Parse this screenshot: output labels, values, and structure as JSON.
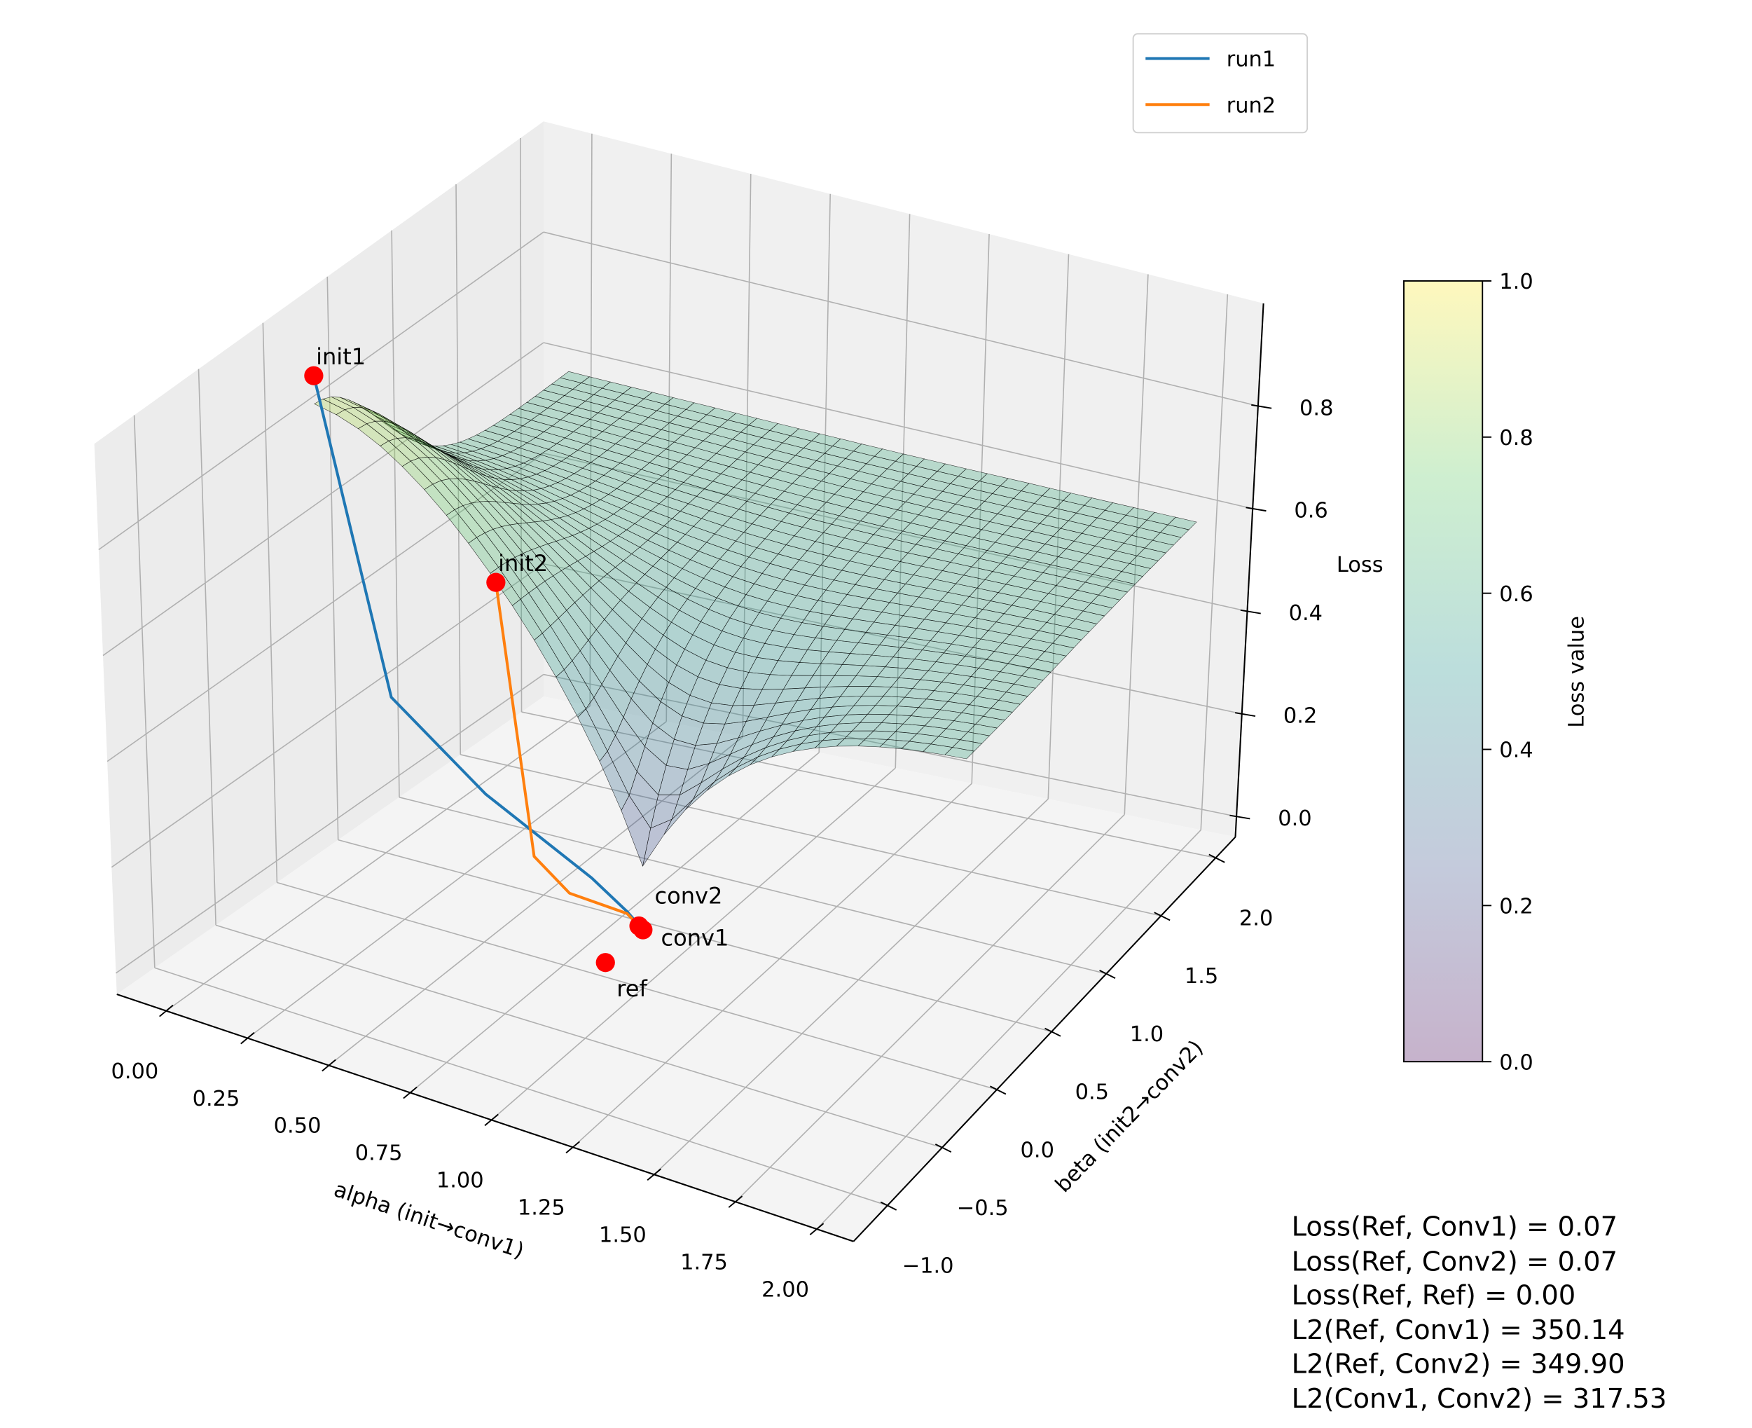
{
  "chart_data": {
    "type": "surface3d",
    "title": "",
    "xlabel": "alpha (init→conv1)",
    "ylabel": "beta (init2→conv2)",
    "zlabel": "Loss",
    "xlim": [
      -0.152,
      2.113
    ],
    "ylim": [
      -1.31,
      2.18
    ],
    "zlim": [
      -0.04,
      1.0
    ],
    "grid": true,
    "x_ticks": [
      "0.00",
      "0.25",
      "0.50",
      "0.75",
      "1.00",
      "1.25",
      "1.50",
      "1.75",
      "2.00"
    ],
    "y_ticks": [
      "−1.0",
      "−0.5",
      "0.0",
      "0.5",
      "1.0",
      "1.5",
      "2.0"
    ],
    "z_ticks": [
      "0.0",
      "0.2",
      "0.4",
      "0.6",
      "0.8"
    ],
    "surface": {
      "alpha_range": [
        0,
        2
      ],
      "beta_range": [
        0,
        2
      ],
      "resolution": 30,
      "colormap": "viridis",
      "opacity": 0.3
    },
    "series": [
      {
        "name": "run1",
        "color": "#1f77b4",
        "points": [
          [
            0,
            0,
            0.93
          ],
          [
            0.22,
            0,
            0.37
          ],
          [
            0.51,
            0,
            0.24
          ],
          [
            0.84,
            0,
            0.14
          ],
          [
            0.95,
            0,
            0.096
          ],
          [
            1.0,
            0,
            0.07
          ]
        ]
      },
      {
        "name": "run2",
        "color": "#ff7f0e",
        "points": [
          [
            0.55,
            0,
            0.645
          ],
          [
            0.66,
            0,
            0.149
          ],
          [
            0.77,
            0,
            0.099
          ],
          [
            0.95,
            0,
            0.092
          ],
          [
            0.98,
            0.02,
            0.07
          ]
        ]
      }
    ],
    "markers": [
      {
        "label": "init1",
        "point": [
          0,
          0,
          0.93
        ]
      },
      {
        "label": "init2",
        "point": [
          0.55,
          0,
          0.645
        ]
      },
      {
        "label": "conv1",
        "point": [
          1.0,
          0,
          0.07
        ]
      },
      {
        "label": "conv2",
        "point": [
          0.98,
          0.02,
          0.07
        ]
      },
      {
        "label": "ref",
        "point": [
          0.9,
          -0.05,
          0.0
        ]
      }
    ],
    "marker_color": "#ff0000",
    "legend": {
      "placement": "top-right",
      "entries": [
        "run1",
        "run2"
      ]
    },
    "colorbar": {
      "label": "Loss value",
      "range": [
        0,
        1
      ],
      "ticks": [
        "0.0",
        "0.2",
        "0.4",
        "0.6",
        "0.8",
        "1.0"
      ]
    },
    "annotation_lines": [
      "Loss(Ref, Conv1) = 0.07",
      "Loss(Ref, Conv2) = 0.07",
      "Loss(Ref, Ref) = 0.00",
      "L2(Ref, Conv1) = 350.14",
      "L2(Ref, Conv2) = 349.90",
      "L2(Conv1, Conv2) = 317.53"
    ]
  }
}
